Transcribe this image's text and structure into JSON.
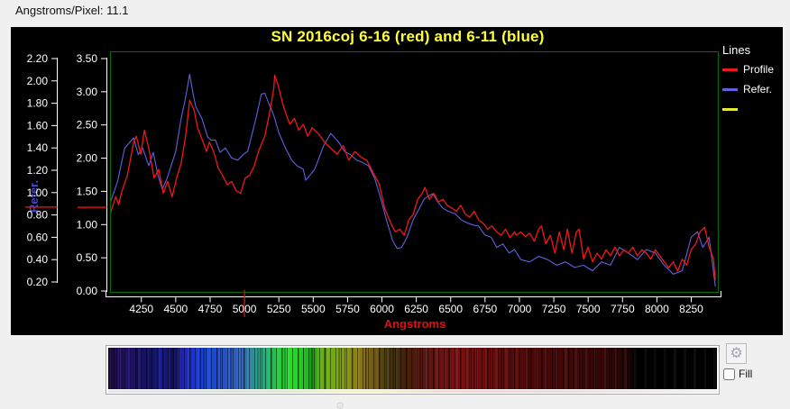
{
  "header": {
    "angstroms_per_pixel": "Angstroms/Pixel: 11.1"
  },
  "controls": {
    "fill_label": "Fill",
    "fill_checked": false,
    "settings_icon": "gear"
  },
  "spectrum_bar": {
    "gradient_stops": [
      [
        "#150833",
        0
      ],
      [
        "#231066",
        0.02
      ],
      [
        "#1a0f73",
        0.045
      ],
      [
        "#101066",
        0.07
      ],
      [
        "#1a1a99",
        0.09
      ],
      [
        "#0d0d4d",
        0.105
      ],
      [
        "#2020b3",
        0.12
      ],
      [
        "#1838d9",
        0.145
      ],
      [
        "#1545e0",
        0.165
      ],
      [
        "#2050cc",
        0.19
      ],
      [
        "#3366bb",
        0.22
      ],
      [
        "#22a38f",
        0.245
      ],
      [
        "#1ab370",
        0.26
      ],
      [
        "#26c244",
        0.275
      ],
      [
        "#26e026",
        0.295
      ],
      [
        "#1fcc1f",
        0.32
      ],
      [
        "#119911",
        0.335
      ],
      [
        "#66b312",
        0.35
      ],
      [
        "#7aa310",
        0.38
      ],
      [
        "#8f7f10",
        0.41
      ],
      [
        "#7f5f0f",
        0.43
      ],
      [
        "#4f3f08",
        0.455
      ],
      [
        "#402808",
        0.475
      ],
      [
        "#511808",
        0.5
      ],
      [
        "#611410",
        0.525
      ],
      [
        "#701010",
        0.55
      ],
      [
        "#800c0c",
        0.58
      ],
      [
        "#700808",
        0.62
      ],
      [
        "#600808",
        0.66
      ],
      [
        "#500606",
        0.7
      ],
      [
        "#440505",
        0.76
      ],
      [
        "#380404",
        0.82
      ],
      [
        "#200202",
        0.855
      ],
      [
        "#000000",
        0.865
      ],
      [
        "#000000",
        1
      ]
    ]
  },
  "chart_data": {
    "type": "line",
    "title": "SN 2016coj 6-16 (red) and 6-11 (blue)",
    "xlabel": "Angstroms",
    "x_range": [
      4022,
      8450
    ],
    "x_ticks": [
      4250,
      4500,
      4750,
      5000,
      5250,
      5500,
      5750,
      6000,
      6250,
      6500,
      6750,
      7000,
      7250,
      7500,
      7750,
      8000,
      8250
    ],
    "cursor_wavelength": 5000,
    "grid": false,
    "plot_bg": "#000000",
    "border_color": "#007000",
    "colors": {
      "title": "#ffff33",
      "axis_text": "#ffffff",
      "x_label": "#e01010",
      "refer_axis_label": "#4848d8",
      "marker": "#cc1414",
      "cursor": "#e01010"
    },
    "y_axis_profile": {
      "ticks": [
        3.5,
        3.0,
        2.5,
        2.0,
        1.5,
        1.0,
        0.5,
        0.0
      ],
      "range": [
        0,
        3.5
      ],
      "marker_value": 1.26
    },
    "y_axis_refer": {
      "label": "Refer.",
      "ticks": [
        2.2,
        2.0,
        1.8,
        1.6,
        1.4,
        1.2,
        1.0,
        0.8,
        0.6,
        0.4,
        0.2
      ],
      "range": [
        0.2,
        2.2
      ],
      "marker_value": 0.87
    },
    "legend": {
      "title": "Lines",
      "position": "right",
      "items": [
        {
          "label": "Profile",
          "color": "#f01818"
        },
        {
          "label": "Refer.",
          "color": "#6060e0"
        },
        {
          "label": "",
          "color": "#e8e830"
        }
      ]
    },
    "series": [
      {
        "name": "Profile",
        "axis": "profile",
        "ylim": [
          0,
          3.5
        ],
        "color": "#f01818",
        "points": [
          [
            4018,
            1.13
          ],
          [
            4064,
            1.42
          ],
          [
            4085,
            1.3
          ],
          [
            4109,
            1.51
          ],
          [
            4148,
            1.74
          ],
          [
            4194,
            2.24
          ],
          [
            4213,
            2.33
          ],
          [
            4246,
            2.06
          ],
          [
            4272,
            2.42
          ],
          [
            4304,
            2.15
          ],
          [
            4324,
            1.92
          ],
          [
            4343,
            1.7
          ],
          [
            4376,
            1.83
          ],
          [
            4409,
            1.47
          ],
          [
            4441,
            1.65
          ],
          [
            4474,
            1.42
          ],
          [
            4506,
            1.7
          ],
          [
            4539,
            1.92
          ],
          [
            4572,
            2.33
          ],
          [
            4601,
            2.87
          ],
          [
            4633,
            2.73
          ],
          [
            4659,
            2.46
          ],
          [
            4692,
            2.28
          ],
          [
            4724,
            2.1
          ],
          [
            4744,
            2.24
          ],
          [
            4776,
            2.1
          ],
          [
            4809,
            1.85
          ],
          [
            4841,
            1.74
          ],
          [
            4874,
            1.6
          ],
          [
            4907,
            1.65
          ],
          [
            4939,
            1.51
          ],
          [
            4972,
            1.47
          ],
          [
            5005,
            1.7
          ],
          [
            5037,
            1.74
          ],
          [
            5070,
            1.88
          ],
          [
            5102,
            2.1
          ],
          [
            5148,
            2.33
          ],
          [
            5187,
            2.73
          ],
          [
            5213,
            3.05
          ],
          [
            5220,
            3.25
          ],
          [
            5246,
            3.09
          ],
          [
            5278,
            2.82
          ],
          [
            5298,
            2.69
          ],
          [
            5330,
            2.51
          ],
          [
            5363,
            2.6
          ],
          [
            5395,
            2.42
          ],
          [
            5428,
            2.51
          ],
          [
            5460,
            2.33
          ],
          [
            5493,
            2.46
          ],
          [
            5537,
            2.37
          ],
          [
            5583,
            2.24
          ],
          [
            5628,
            2.15
          ],
          [
            5674,
            2.06
          ],
          [
            5719,
            2.19
          ],
          [
            5758,
            1.97
          ],
          [
            5804,
            2.1
          ],
          [
            5850,
            2.01
          ],
          [
            5889,
            1.97
          ],
          [
            5934,
            1.79
          ],
          [
            5980,
            1.61
          ],
          [
            6019,
            1.25
          ],
          [
            6065,
            1.02
          ],
          [
            6097,
            0.89
          ],
          [
            6130,
            0.93
          ],
          [
            6162,
            0.84
          ],
          [
            6195,
            1.07
          ],
          [
            6228,
            1.16
          ],
          [
            6260,
            1.38
          ],
          [
            6293,
            1.47
          ],
          [
            6313,
            1.56
          ],
          [
            6345,
            1.38
          ],
          [
            6378,
            1.47
          ],
          [
            6410,
            1.34
          ],
          [
            6443,
            1.38
          ],
          [
            6475,
            1.29
          ],
          [
            6508,
            1.25
          ],
          [
            6541,
            1.2
          ],
          [
            6573,
            1.29
          ],
          [
            6606,
            1.16
          ],
          [
            6638,
            1.11
          ],
          [
            6671,
            1.2
          ],
          [
            6703,
            1.07
          ],
          [
            6736,
            1.02
          ],
          [
            6769,
            0.93
          ],
          [
            6801,
            0.98
          ],
          [
            6834,
            0.89
          ],
          [
            6867,
            0.84
          ],
          [
            6899,
            0.93
          ],
          [
            6932,
            0.8
          ],
          [
            6964,
            0.89
          ],
          [
            6977,
            0.84
          ],
          [
            7010,
            0.89
          ],
          [
            7043,
            0.82
          ],
          [
            7075,
            0.87
          ],
          [
            7108,
            0.75
          ],
          [
            7140,
            0.93
          ],
          [
            7160,
            0.98
          ],
          [
            7192,
            0.71
          ],
          [
            7225,
            0.84
          ],
          [
            7258,
            0.57
          ],
          [
            7290,
            0.89
          ],
          [
            7323,
            0.62
          ],
          [
            7349,
            0.93
          ],
          [
            7382,
            0.57
          ],
          [
            7414,
            0.89
          ],
          [
            7434,
            0.93
          ],
          [
            7467,
            0.48
          ],
          [
            7499,
            0.66
          ],
          [
            7532,
            0.44
          ],
          [
            7565,
            0.57
          ],
          [
            7597,
            0.48
          ],
          [
            7630,
            0.62
          ],
          [
            7662,
            0.53
          ],
          [
            7695,
            0.66
          ],
          [
            7727,
            0.53
          ],
          [
            7760,
            0.62
          ],
          [
            7793,
            0.57
          ],
          [
            7825,
            0.66
          ],
          [
            7858,
            0.53
          ],
          [
            7891,
            0.62
          ],
          [
            7923,
            0.57
          ],
          [
            7956,
            0.48
          ],
          [
            7988,
            0.62
          ],
          [
            8021,
            0.53
          ],
          [
            8053,
            0.44
          ],
          [
            8086,
            0.35
          ],
          [
            8119,
            0.44
          ],
          [
            8151,
            0.3
          ],
          [
            8184,
            0.48
          ],
          [
            8217,
            0.39
          ],
          [
            8249,
            0.62
          ],
          [
            8282,
            0.71
          ],
          [
            8314,
            0.89
          ],
          [
            8347,
            0.96
          ],
          [
            8380,
            0.66
          ],
          [
            8412,
            0.48
          ],
          [
            8425,
            0.16
          ]
        ]
      },
      {
        "name": "Refer.",
        "axis": "refer",
        "ylim": [
          0.2,
          2.2
        ],
        "color": "#6060e0",
        "points": [
          [
            4018,
            0.89
          ],
          [
            4077,
            1.1
          ],
          [
            4129,
            1.4
          ],
          [
            4194,
            1.49
          ],
          [
            4227,
            1.34
          ],
          [
            4259,
            1.4
          ],
          [
            4304,
            1.24
          ],
          [
            4337,
            1.36
          ],
          [
            4370,
            1.16
          ],
          [
            4402,
            1.03
          ],
          [
            4435,
            1.12
          ],
          [
            4500,
            1.37
          ],
          [
            4539,
            1.66
          ],
          [
            4572,
            1.85
          ],
          [
            4601,
            2.06
          ],
          [
            4627,
            1.88
          ],
          [
            4646,
            1.77
          ],
          [
            4666,
            1.72
          ],
          [
            4692,
            1.66
          ],
          [
            4731,
            1.5
          ],
          [
            4757,
            1.47
          ],
          [
            4789,
            1.47
          ],
          [
            4822,
            1.36
          ],
          [
            4861,
            1.4
          ],
          [
            4907,
            1.31
          ],
          [
            4952,
            1.29
          ],
          [
            4991,
            1.34
          ],
          [
            5024,
            1.37
          ],
          [
            5083,
            1.66
          ],
          [
            5122,
            1.88
          ],
          [
            5148,
            1.89
          ],
          [
            5180,
            1.79
          ],
          [
            5213,
            1.69
          ],
          [
            5252,
            1.53
          ],
          [
            5298,
            1.4
          ],
          [
            5343,
            1.29
          ],
          [
            5382,
            1.24
          ],
          [
            5428,
            1.21
          ],
          [
            5446,
            1.11
          ],
          [
            5511,
            1.21
          ],
          [
            5576,
            1.42
          ],
          [
            5628,
            1.53
          ],
          [
            5687,
            1.45
          ],
          [
            5726,
            1.37
          ],
          [
            5771,
            1.34
          ],
          [
            5817,
            1.29
          ],
          [
            5856,
            1.27
          ],
          [
            5902,
            1.24
          ],
          [
            5947,
            1.13
          ],
          [
            5986,
            0.97
          ],
          [
            6032,
            0.76
          ],
          [
            6078,
            0.57
          ],
          [
            6110,
            0.5
          ],
          [
            6143,
            0.51
          ],
          [
            6182,
            0.6
          ],
          [
            6228,
            0.76
          ],
          [
            6273,
            0.86
          ],
          [
            6306,
            0.94
          ],
          [
            6338,
            0.97
          ],
          [
            6371,
            0.99
          ],
          [
            6404,
            0.92
          ],
          [
            6443,
            0.86
          ],
          [
            6488,
            0.83
          ],
          [
            6534,
            0.81
          ],
          [
            6573,
            0.76
          ],
          [
            6619,
            0.73
          ],
          [
            6664,
            0.71
          ],
          [
            6703,
            0.7
          ],
          [
            6749,
            0.62
          ],
          [
            6795,
            0.6
          ],
          [
            6834,
            0.51
          ],
          [
            6880,
            0.54
          ],
          [
            6925,
            0.46
          ],
          [
            6964,
            0.49
          ],
          [
            7010,
            0.4
          ],
          [
            7075,
            0.38
          ],
          [
            7140,
            0.43
          ],
          [
            7206,
            0.4
          ],
          [
            7271,
            0.35
          ],
          [
            7336,
            0.38
          ],
          [
            7401,
            0.33
          ],
          [
            7467,
            0.35
          ],
          [
            7532,
            0.3
          ],
          [
            7597,
            0.38
          ],
          [
            7662,
            0.35
          ],
          [
            7727,
            0.51
          ],
          [
            7793,
            0.46
          ],
          [
            7858,
            0.4
          ],
          [
            7923,
            0.49
          ],
          [
            7988,
            0.46
          ],
          [
            8053,
            0.35
          ],
          [
            8119,
            0.27
          ],
          [
            8184,
            0.3
          ],
          [
            8249,
            0.6
          ],
          [
            8295,
            0.65
          ],
          [
            8334,
            0.51
          ],
          [
            8380,
            0.6
          ],
          [
            8425,
            0.16
          ]
        ]
      }
    ]
  }
}
